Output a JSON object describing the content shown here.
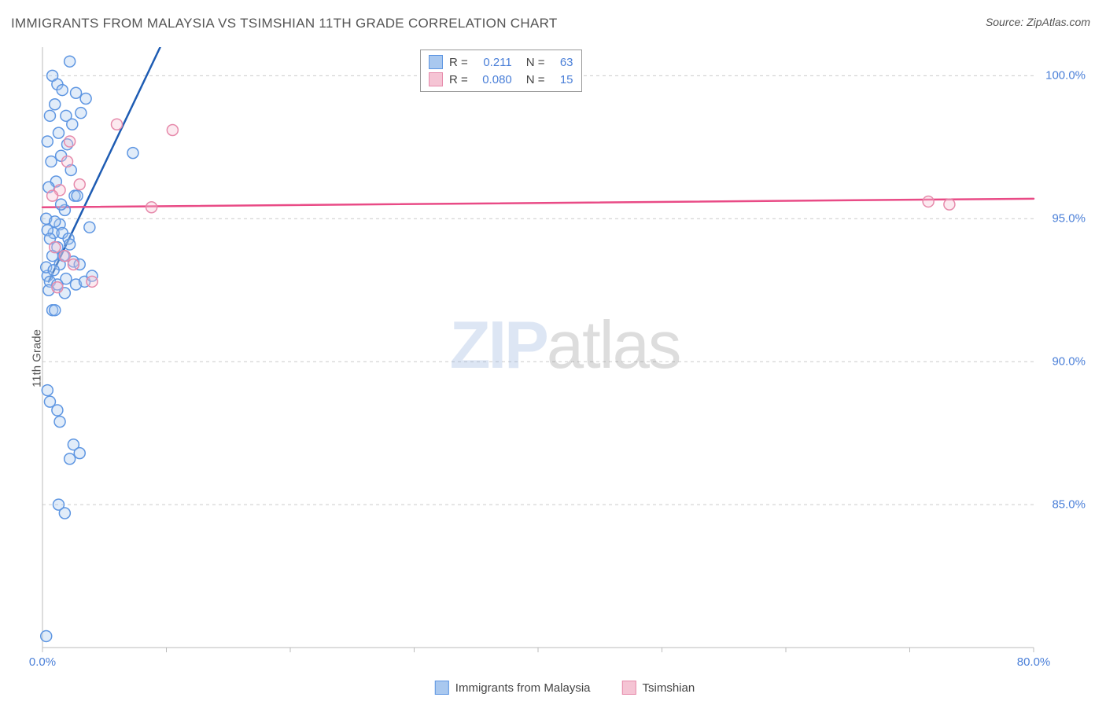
{
  "title": "IMMIGRANTS FROM MALAYSIA VS TSIMSHIAN 11TH GRADE CORRELATION CHART",
  "source": "Source: ZipAtlas.com",
  "y_axis_label": "11th Grade",
  "watermark_a": "ZIP",
  "watermark_b": "atlas",
  "chart": {
    "type": "scatter",
    "background_color": "#ffffff",
    "grid_color": "#cccccc",
    "grid_dash": "4,4",
    "axis_color": "#bbbbbb",
    "text_color": "#555555",
    "tick_label_color": "#4a7fd8",
    "xlim": [
      0,
      80
    ],
    "ylim": [
      80,
      101
    ],
    "x_ticks": [
      0,
      10,
      20,
      30,
      40,
      50,
      60,
      70,
      80
    ],
    "x_tick_labels": {
      "0": "0.0%",
      "80": "80.0%"
    },
    "y_ticks": [
      85,
      90,
      95,
      100
    ],
    "y_tick_labels": {
      "85": "85.0%",
      "90": "90.0%",
      "95": "95.0%",
      "100": "100.0%"
    },
    "marker_radius": 7,
    "marker_stroke_width": 1.5,
    "marker_fill_opacity": 0.35,
    "trend_line_width": 2.5,
    "series": [
      {
        "name": "Immigrants from Malaysia",
        "color_stroke": "#5e96e2",
        "color_fill": "#a9c8ef",
        "trend_color": "#1e5cb3",
        "R": "0.211",
        "N": "63",
        "trend": {
          "x1": 0.5,
          "y1": 92.8,
          "x2": 9.5,
          "y2": 101
        },
        "points": [
          [
            2.2,
            100.5
          ],
          [
            0.8,
            100
          ],
          [
            1.2,
            99.7
          ],
          [
            1.6,
            99.5
          ],
          [
            2.7,
            99.4
          ],
          [
            1.0,
            99.0
          ],
          [
            3.5,
            99.2
          ],
          [
            0.6,
            98.6
          ],
          [
            1.9,
            98.6
          ],
          [
            2.4,
            98.3
          ],
          [
            1.3,
            98.0
          ],
          [
            0.4,
            97.7
          ],
          [
            2.0,
            97.6
          ],
          [
            3.1,
            98.7
          ],
          [
            1.5,
            97.2
          ],
          [
            0.7,
            97.0
          ],
          [
            2.3,
            96.7
          ],
          [
            7.3,
            97.3
          ],
          [
            1.1,
            96.3
          ],
          [
            0.5,
            96.1
          ],
          [
            2.6,
            95.8
          ],
          [
            1.8,
            95.3
          ],
          [
            0.3,
            95.0
          ],
          [
            1.4,
            94.8
          ],
          [
            2.8,
            95.8
          ],
          [
            0.9,
            94.5
          ],
          [
            1.6,
            94.5
          ],
          [
            3.8,
            94.7
          ],
          [
            0.4,
            94.6
          ],
          [
            0.6,
            94.3
          ],
          [
            2.1,
            94.3
          ],
          [
            1.2,
            94.0
          ],
          [
            0.8,
            93.7
          ],
          [
            1.7,
            93.7
          ],
          [
            2.5,
            93.5
          ],
          [
            0.4,
            93.0
          ],
          [
            0.3,
            93.3
          ],
          [
            1.4,
            93.4
          ],
          [
            3.0,
            93.4
          ],
          [
            0.9,
            93.2
          ],
          [
            1.9,
            92.9
          ],
          [
            0.6,
            92.8
          ],
          [
            2.7,
            92.7
          ],
          [
            1.2,
            92.7
          ],
          [
            3.4,
            92.8
          ],
          [
            0.5,
            92.5
          ],
          [
            1.8,
            92.4
          ],
          [
            0.8,
            91.8
          ],
          [
            2.2,
            94.1
          ],
          [
            4.0,
            93.0
          ],
          [
            1.0,
            91.8
          ],
          [
            0.4,
            89.0
          ],
          [
            0.6,
            88.6
          ],
          [
            1.2,
            88.3
          ],
          [
            1.4,
            87.9
          ],
          [
            2.5,
            87.1
          ],
          [
            2.2,
            86.6
          ],
          [
            3.0,
            86.8
          ],
          [
            1.3,
            85.0
          ],
          [
            1.8,
            84.7
          ],
          [
            0.3,
            80.4
          ],
          [
            1.0,
            94.9
          ],
          [
            1.5,
            95.5
          ]
        ]
      },
      {
        "name": "Tsimshian",
        "color_stroke": "#e68aab",
        "color_fill": "#f5c4d4",
        "trend_color": "#e94b86",
        "R": "0.080",
        "N": "15",
        "trend": {
          "x1": 0,
          "y1": 95.4,
          "x2": 80,
          "y2": 95.7
        },
        "points": [
          [
            6.0,
            98.3
          ],
          [
            10.5,
            98.1
          ],
          [
            2.2,
            97.7
          ],
          [
            1.4,
            96.0
          ],
          [
            3.0,
            96.2
          ],
          [
            8.8,
            95.4
          ],
          [
            1.0,
            94.0
          ],
          [
            2.5,
            93.4
          ],
          [
            1.8,
            93.7
          ],
          [
            4.0,
            92.8
          ],
          [
            1.2,
            92.6
          ],
          [
            2.0,
            97.0
          ],
          [
            71.5,
            95.6
          ],
          [
            73.2,
            95.5
          ],
          [
            0.8,
            95.8
          ]
        ]
      }
    ],
    "stats_legend": {
      "rows": [
        {
          "swatch_fill": "#a9c8ef",
          "swatch_stroke": "#5e96e2",
          "r_label": "R  =",
          "r_val": "0.211",
          "n_label": "N  =",
          "n_val": "63"
        },
        {
          "swatch_fill": "#f5c4d4",
          "swatch_stroke": "#e68aab",
          "r_label": "R  =",
          "r_val": "0.080",
          "n_label": "N  =",
          "n_val": "15"
        }
      ]
    },
    "series_legend": [
      {
        "swatch_fill": "#a9c8ef",
        "swatch_stroke": "#5e96e2",
        "label": "Immigrants from Malaysia"
      },
      {
        "swatch_fill": "#f5c4d4",
        "swatch_stroke": "#e68aab",
        "label": "Tsimshian"
      }
    ]
  }
}
